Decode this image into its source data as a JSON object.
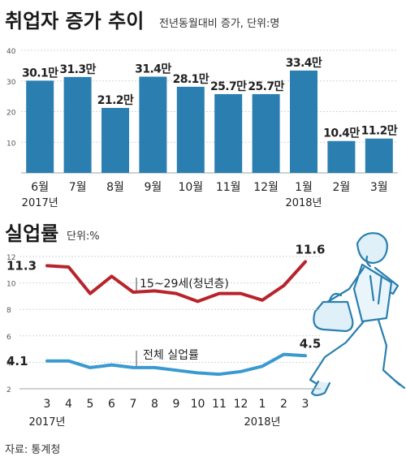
{
  "source": "자료: 통계청",
  "chart_data": [
    {
      "type": "bar",
      "title": "취업자 증가 추이",
      "subtitle": "전년동월대비 증가, 단위:명",
      "categories": [
        "6월",
        "7월",
        "8월",
        "9월",
        "10월",
        "11월",
        "12월",
        "1월",
        "2월",
        "3월"
      ],
      "year_labels": [
        {
          "index": 0,
          "label": "2017년"
        },
        {
          "index": 7,
          "label": "2018년"
        }
      ],
      "values": [
        30.1,
        31.3,
        21.2,
        31.4,
        28.1,
        25.7,
        25.7,
        33.4,
        10.4,
        11.2
      ],
      "value_labels": [
        "30.1만",
        "31.3만",
        "21.2만",
        "31.4만",
        "28.1만",
        "25.7만",
        "25.7만",
        "33.4만",
        "10.4만",
        "11.2만"
      ],
      "yticks": [
        "10",
        "20",
        "30",
        "40"
      ],
      "ylim": [
        0,
        40
      ],
      "color": "#2a7fb0"
    },
    {
      "type": "line",
      "title": "실업률",
      "subtitle": "단위:%",
      "categories": [
        "3",
        "4",
        "5",
        "6",
        "7",
        "8",
        "9",
        "10",
        "11",
        "12",
        "1",
        "2",
        "3"
      ],
      "year_labels": [
        {
          "index": 0,
          "label": "2017년"
        },
        {
          "index": 10,
          "label": "2018년"
        }
      ],
      "yticks": [
        "2",
        "4",
        "6",
        "8",
        "10",
        "12"
      ],
      "ylim": [
        2,
        12
      ],
      "series": [
        {
          "name": "15~29세(청년층)",
          "color": "#b8242c",
          "values": [
            11.3,
            11.2,
            9.2,
            10.5,
            9.3,
            9.4,
            9.2,
            8.6,
            9.2,
            9.2,
            8.7,
            9.8,
            11.6
          ],
          "start_label": "11.3",
          "end_label": "11.6"
        },
        {
          "name": "전체 실업률",
          "color": "#3a9ad0",
          "values": [
            4.1,
            4.1,
            3.6,
            3.8,
            3.6,
            3.6,
            3.4,
            3.2,
            3.1,
            3.3,
            3.7,
            4.6,
            4.5
          ],
          "start_label": "4.1",
          "end_label": "4.5"
        }
      ]
    }
  ]
}
